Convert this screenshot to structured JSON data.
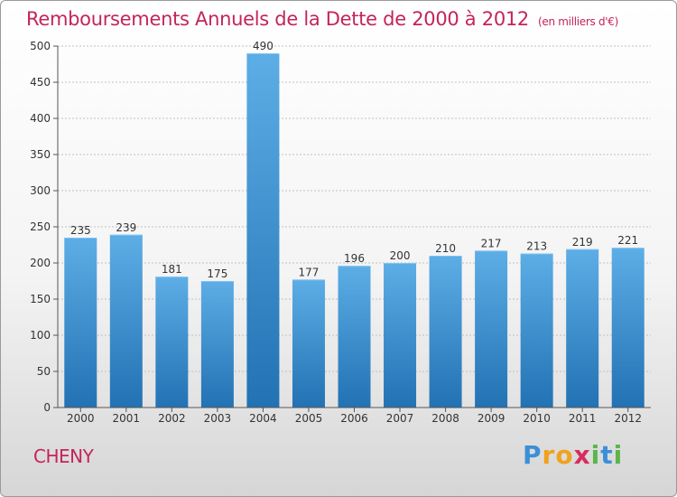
{
  "header": {
    "title": "Remboursements Annuels de la Dette de 2000 à 2012",
    "unit": "(en milliers d'€)"
  },
  "footer": {
    "city": "CHENY",
    "logo": [
      "P",
      "r",
      "o",
      "x",
      "i",
      "t",
      "i"
    ],
    "logo_colors": [
      "#3b8fd8",
      "#f0a21c",
      "#f0a21c",
      "#d62d5e",
      "#5ab64b",
      "#3b8fd8",
      "#5ab64b"
    ]
  },
  "colors": {
    "bar_top": "#5dade6",
    "bar_bottom": "#2272b4",
    "title": "#c4245b",
    "grid": "#c0c0c0"
  },
  "chart_data": {
    "type": "bar",
    "title": "Remboursements Annuels de la Dette de 2000 à 2012",
    "categories": [
      "2000",
      "2001",
      "2002",
      "2003",
      "2004",
      "2005",
      "2006",
      "2007",
      "2008",
      "2009",
      "2010",
      "2011",
      "2012"
    ],
    "values": [
      235,
      239,
      181,
      175,
      490,
      177,
      196,
      200,
      210,
      217,
      213,
      219,
      221
    ],
    "ylim": [
      0,
      500
    ],
    "yticks": [
      0,
      50,
      100,
      150,
      200,
      250,
      300,
      350,
      400,
      450,
      500
    ],
    "grid": true,
    "xlabel": "",
    "ylabel": ""
  }
}
